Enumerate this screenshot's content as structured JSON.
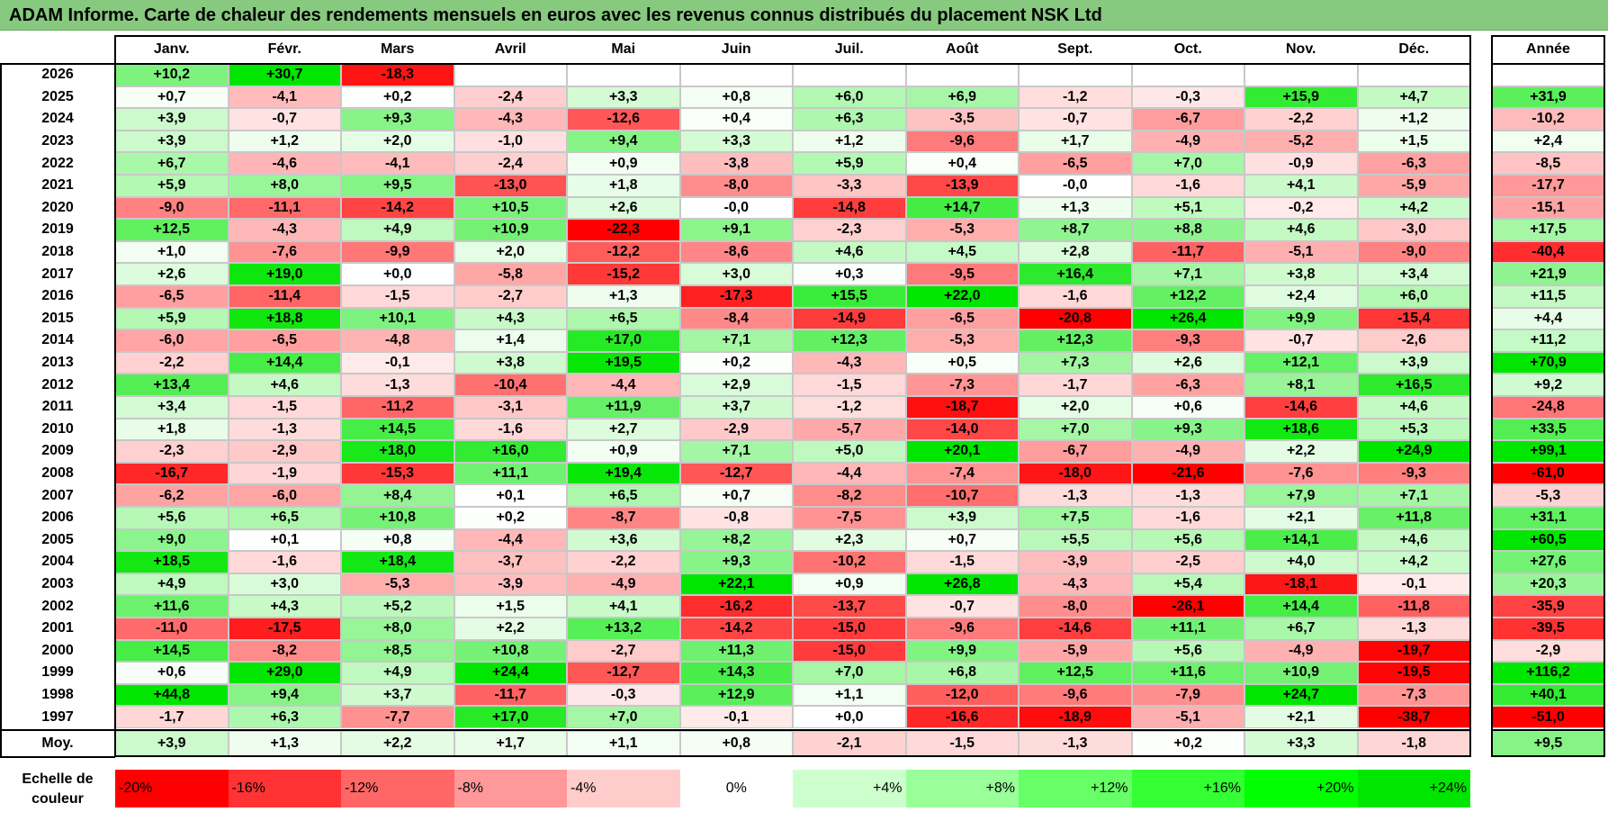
{
  "title": "ADAM Informe. Carte de chaleur des rendements mensuels en euros avec les revenus connus distribués du placement NSK Ltd",
  "chart_data": {
    "type": "heatmap",
    "months": [
      "Janv.",
      "Févr.",
      "Mars",
      "Avril",
      "Mai",
      "Juin",
      "Juil.",
      "Août",
      "Sept.",
      "Oct.",
      "Nov.",
      "Déc."
    ],
    "year_header": "Année",
    "rows": [
      {
        "year": "2026",
        "values": [
          "+10,2",
          "+30,7",
          "-18,3",
          "",
          "",
          "",
          "",
          "",
          "",
          "",
          "",
          ""
        ],
        "annual": ""
      },
      {
        "year": "2025",
        "values": [
          "+0,7",
          "-4,1",
          "+0,2",
          "-2,4",
          "+3,3",
          "+0,8",
          "+6,0",
          "+6,9",
          "-1,2",
          "-0,3",
          "+15,9",
          "+4,7"
        ],
        "annual": "+31,9"
      },
      {
        "year": "2024",
        "values": [
          "+3,9",
          "-0,7",
          "+9,3",
          "-4,3",
          "-12,6",
          "+0,4",
          "+6,3",
          "-3,5",
          "-0,7",
          "-6,7",
          "-2,2",
          "+1,2"
        ],
        "annual": "-10,2"
      },
      {
        "year": "2023",
        "values": [
          "+3,9",
          "+1,2",
          "+2,0",
          "-1,0",
          "+9,4",
          "+3,3",
          "+1,2",
          "-9,6",
          "+1,7",
          "-4,9",
          "-5,2",
          "+1,5"
        ],
        "annual": "+2,4"
      },
      {
        "year": "2022",
        "values": [
          "+6,7",
          "-4,6",
          "-4,1",
          "-2,4",
          "+0,9",
          "-3,8",
          "+5,9",
          "+0,4",
          "-6,5",
          "+7,0",
          "-0,9",
          "-6,3"
        ],
        "annual": "-8,5"
      },
      {
        "year": "2021",
        "values": [
          "+5,9",
          "+8,0",
          "+9,5",
          "-13,0",
          "+1,8",
          "-8,0",
          "-3,3",
          "-13,9",
          "-0,0",
          "-1,6",
          "+4,1",
          "-5,9"
        ],
        "annual": "-17,7"
      },
      {
        "year": "2020",
        "values": [
          "-9,0",
          "-11,1",
          "-14,2",
          "+10,5",
          "+2,6",
          "-0,0",
          "-14,8",
          "+14,7",
          "+1,3",
          "+5,1",
          "-0,2",
          "+4,2"
        ],
        "annual": "-15,1"
      },
      {
        "year": "2019",
        "values": [
          "+12,5",
          "-4,3",
          "+4,9",
          "+10,9",
          "-22,3",
          "+9,1",
          "-2,3",
          "-5,3",
          "+8,7",
          "+8,8",
          "+4,6",
          "-3,0"
        ],
        "annual": "+17,5"
      },
      {
        "year": "2018",
        "values": [
          "+1,0",
          "-7,6",
          "-9,9",
          "+2,0",
          "-12,2",
          "-8,6",
          "+4,6",
          "+4,5",
          "+2,8",
          "-11,7",
          "-5,1",
          "-9,0"
        ],
        "annual": "-40,4"
      },
      {
        "year": "2017",
        "values": [
          "+2,6",
          "+19,0",
          "+0,0",
          "-5,8",
          "-15,2",
          "+3,0",
          "+0,3",
          "-9,5",
          "+16,4",
          "+7,1",
          "+3,8",
          "+3,4"
        ],
        "annual": "+21,9"
      },
      {
        "year": "2016",
        "values": [
          "-6,5",
          "-11,4",
          "-1,5",
          "-2,7",
          "+1,3",
          "-17,3",
          "+15,5",
          "+22,0",
          "-1,6",
          "+12,2",
          "+2,4",
          "+6,0"
        ],
        "annual": "+11,5"
      },
      {
        "year": "2015",
        "values": [
          "+5,9",
          "+18,8",
          "+10,1",
          "+4,3",
          "+6,5",
          "-8,4",
          "-14,9",
          "-6,5",
          "-20,8",
          "+26,4",
          "+9,9",
          "-15,4"
        ],
        "annual": "+4,4"
      },
      {
        "year": "2014",
        "values": [
          "-6,0",
          "-6,5",
          "-4,8",
          "+1,4",
          "+17,0",
          "+7,1",
          "+12,3",
          "-5,3",
          "+12,3",
          "-9,3",
          "-0,7",
          "-2,6"
        ],
        "annual": "+11,2"
      },
      {
        "year": "2013",
        "values": [
          "-2,2",
          "+14,4",
          "-0,1",
          "+3,8",
          "+19,5",
          "+0,2",
          "-4,3",
          "+0,5",
          "+7,3",
          "+2,6",
          "+12,1",
          "+3,9"
        ],
        "annual": "+70,9"
      },
      {
        "year": "2012",
        "values": [
          "+13,4",
          "+4,6",
          "-1,3",
          "-10,4",
          "-4,4",
          "+2,9",
          "-1,5",
          "-7,3",
          "-1,7",
          "-6,3",
          "+8,1",
          "+16,5"
        ],
        "annual": "+9,2"
      },
      {
        "year": "2011",
        "values": [
          "+3,4",
          "-1,5",
          "-11,2",
          "-3,1",
          "+11,9",
          "+3,7",
          "-1,2",
          "-18,7",
          "+2,0",
          "+0,6",
          "-14,6",
          "+4,6"
        ],
        "annual": "-24,8"
      },
      {
        "year": "2010",
        "values": [
          "+1,8",
          "-1,3",
          "+14,5",
          "-1,6",
          "+2,7",
          "-2,9",
          "-5,7",
          "-14,0",
          "+7,0",
          "+9,3",
          "+18,6",
          "+5,3"
        ],
        "annual": "+33,5"
      },
      {
        "year": "2009",
        "values": [
          "-2,3",
          "-2,9",
          "+18,0",
          "+16,0",
          "+0,9",
          "+7,1",
          "+5,0",
          "+20,1",
          "-6,7",
          "-4,9",
          "+2,2",
          "+24,9"
        ],
        "annual": "+99,1"
      },
      {
        "year": "2008",
        "values": [
          "-16,7",
          "-1,9",
          "-15,3",
          "+11,1",
          "+19,4",
          "-12,7",
          "-4,4",
          "-7,4",
          "-18,0",
          "-21,6",
          "-7,6",
          "-9,3"
        ],
        "annual": "-61,0"
      },
      {
        "year": "2007",
        "values": [
          "-6,2",
          "-6,0",
          "+8,4",
          "+0,1",
          "+6,5",
          "+0,7",
          "-8,2",
          "-10,7",
          "-1,3",
          "-1,3",
          "+7,9",
          "+7,1"
        ],
        "annual": "-5,3"
      },
      {
        "year": "2006",
        "values": [
          "+5,6",
          "+6,5",
          "+10,8",
          "+0,2",
          "-8,7",
          "-0,8",
          "-7,5",
          "+3,9",
          "+7,5",
          "-1,6",
          "+2,1",
          "+11,8"
        ],
        "annual": "+31,1"
      },
      {
        "year": "2005",
        "values": [
          "+9,0",
          "+0,1",
          "+0,8",
          "-4,4",
          "+3,6",
          "+8,2",
          "+2,3",
          "+0,7",
          "+5,5",
          "+5,6",
          "+14,1",
          "+4,6"
        ],
        "annual": "+60,5"
      },
      {
        "year": "2004",
        "values": [
          "+18,5",
          "-1,6",
          "+18,4",
          "-3,7",
          "-2,2",
          "+9,3",
          "-10,2",
          "-1,5",
          "-3,9",
          "-2,5",
          "+4,0",
          "+4,2"
        ],
        "annual": "+27,6"
      },
      {
        "year": "2003",
        "values": [
          "+4,9",
          "+3,0",
          "-5,3",
          "-3,9",
          "-4,9",
          "+22,1",
          "+0,9",
          "+26,8",
          "-4,3",
          "+5,4",
          "-18,1",
          "-0,1"
        ],
        "annual": "+20,3"
      },
      {
        "year": "2002",
        "values": [
          "+11,6",
          "+4,3",
          "+5,2",
          "+1,5",
          "+4,1",
          "-16,2",
          "-13,7",
          "-0,7",
          "-8,0",
          "-26,1",
          "+14,4",
          "-11,8"
        ],
        "annual": "-35,9"
      },
      {
        "year": "2001",
        "values": [
          "-11,0",
          "-17,5",
          "+8,0",
          "+2,2",
          "+13,2",
          "-14,2",
          "-15,0",
          "-9,6",
          "-14,6",
          "+11,1",
          "+6,7",
          "-1,3"
        ],
        "annual": "-39,5"
      },
      {
        "year": "2000",
        "values": [
          "+14,5",
          "-8,2",
          "+8,5",
          "+10,8",
          "-2,7",
          "+11,3",
          "-15,0",
          "+9,9",
          "-5,9",
          "+5,6",
          "-4,9",
          "-19,7"
        ],
        "annual": "-2,9"
      },
      {
        "year": "1999",
        "values": [
          "+0,6",
          "+29,0",
          "+4,9",
          "+24,4",
          "-12,7",
          "+14,3",
          "+7,0",
          "+6,8",
          "+12,5",
          "+11,6",
          "+10,9",
          "-19,5"
        ],
        "annual": "+116,2"
      },
      {
        "year": "1998",
        "values": [
          "+44,8",
          "+9,4",
          "+3,7",
          "-11,7",
          "-0,3",
          "+12,9",
          "+1,1",
          "-12,0",
          "-9,6",
          "-7,9",
          "+24,7",
          "-7,3"
        ],
        "annual": "+40,1"
      },
      {
        "year": "1997",
        "values": [
          "-1,7",
          "+6,3",
          "-7,7",
          "+17,0",
          "+7,0",
          "-0,1",
          "+0,0",
          "-16,6",
          "-18,9",
          "-5,1",
          "+2,1",
          "-38,7"
        ],
        "annual": "-51,0"
      }
    ],
    "average": {
      "label": "Moy.",
      "values": [
        "+3,9",
        "+1,3",
        "+2,2",
        "+1,7",
        "+1,1",
        "+0,8",
        "-2,1",
        "-1,5",
        "-1,3",
        "+0,2",
        "+3,3",
        "-1,8"
      ],
      "annual": "+9,5"
    },
    "color_scale": {
      "label_line1": "Echelle de",
      "label_line2": "couleur",
      "stops": [
        {
          "label": "-20%",
          "value": -20,
          "color": "#ff0000"
        },
        {
          "label": "-16%",
          "value": -16,
          "color": "#ff3333"
        },
        {
          "label": "-12%",
          "value": -12,
          "color": "#ff6666"
        },
        {
          "label": "-8%",
          "value": -8,
          "color": "#ff9999"
        },
        {
          "label": "-4%",
          "value": -4,
          "color": "#ffcccc"
        },
        {
          "label": "0%",
          "value": 0,
          "color": "#ffffff"
        },
        {
          "label": "+4%",
          "value": 4,
          "color": "#ccffcc"
        },
        {
          "label": "+8%",
          "value": 8,
          "color": "#99ff99"
        },
        {
          "label": "+12%",
          "value": 12,
          "color": "#66ff66"
        },
        {
          "label": "+16%",
          "value": 16,
          "color": "#33ff33"
        },
        {
          "label": "+20%",
          "value": 20,
          "color": "#00ff00"
        },
        {
          "label": "+24%",
          "value": 24,
          "color": "#00e600"
        }
      ]
    }
  }
}
